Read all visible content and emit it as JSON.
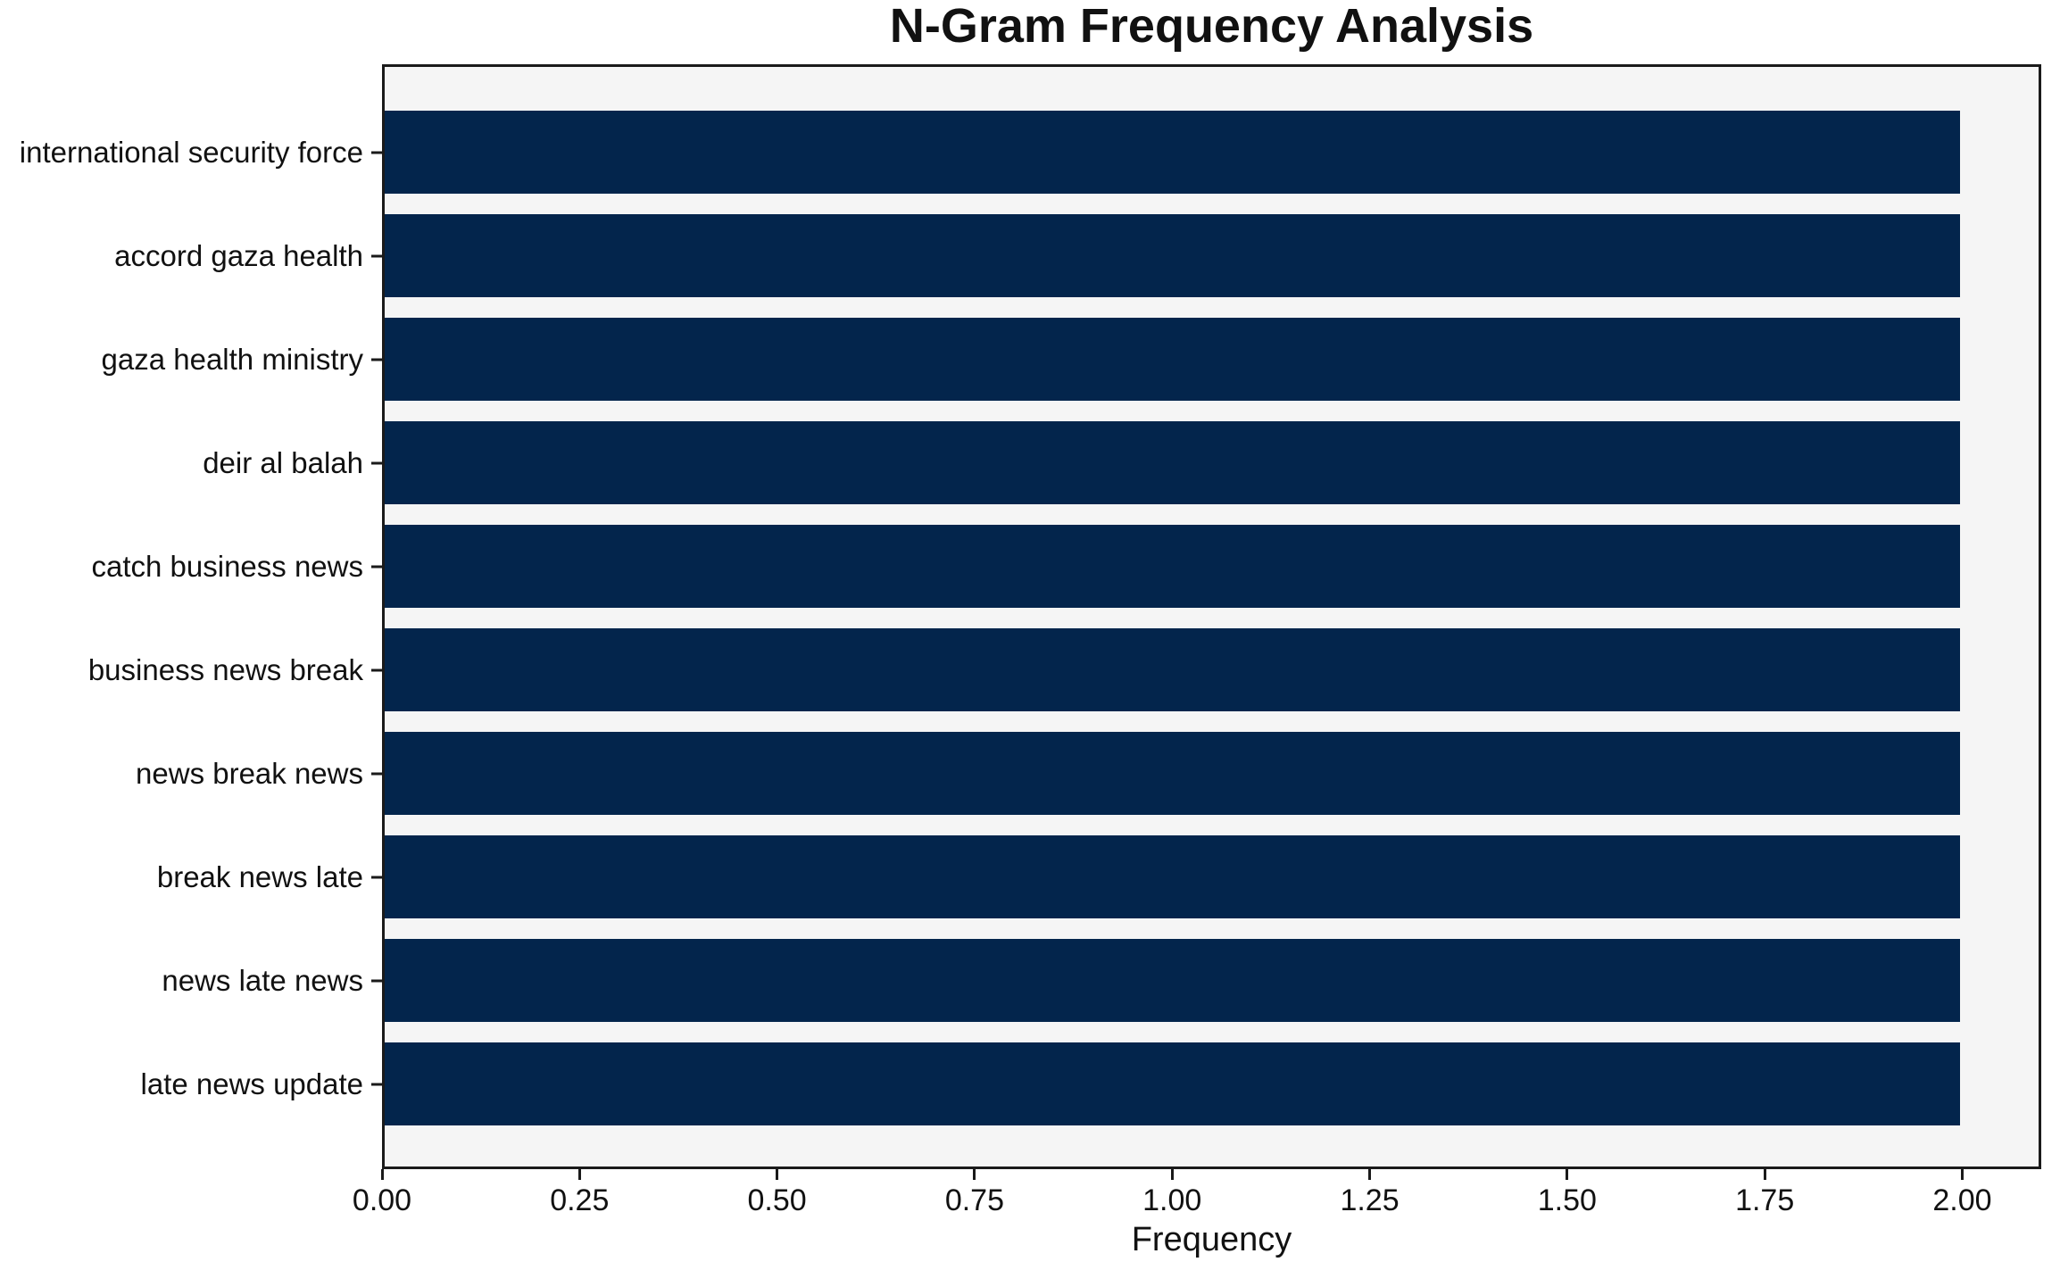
{
  "chart_data": {
    "type": "bar",
    "orientation": "horizontal",
    "title": "N-Gram Frequency Analysis",
    "categories": [
      "international security force",
      "accord gaza health",
      "gaza health ministry",
      "deir al balah",
      "catch business news",
      "business news break",
      "news break news",
      "break news late",
      "news late news",
      "late news update"
    ],
    "values": [
      2,
      2,
      2,
      2,
      2,
      2,
      2,
      2,
      2,
      2
    ],
    "xlabel": "Frequency",
    "xticks": [
      0.0,
      0.25,
      0.5,
      0.75,
      1.0,
      1.25,
      1.5,
      1.75,
      2.0
    ],
    "xtick_labels": [
      "0.00",
      "0.25",
      "0.50",
      "0.75",
      "1.00",
      "1.25",
      "1.50",
      "1.75",
      "2.00"
    ],
    "xlim": [
      0,
      2.1
    ],
    "grid": false,
    "legend": false,
    "bar_color": "#03254c",
    "plot_bg_color": "#f5f5f5",
    "figure_bg_color": "#ffffff",
    "spine_color": "#1a1a1a"
  }
}
